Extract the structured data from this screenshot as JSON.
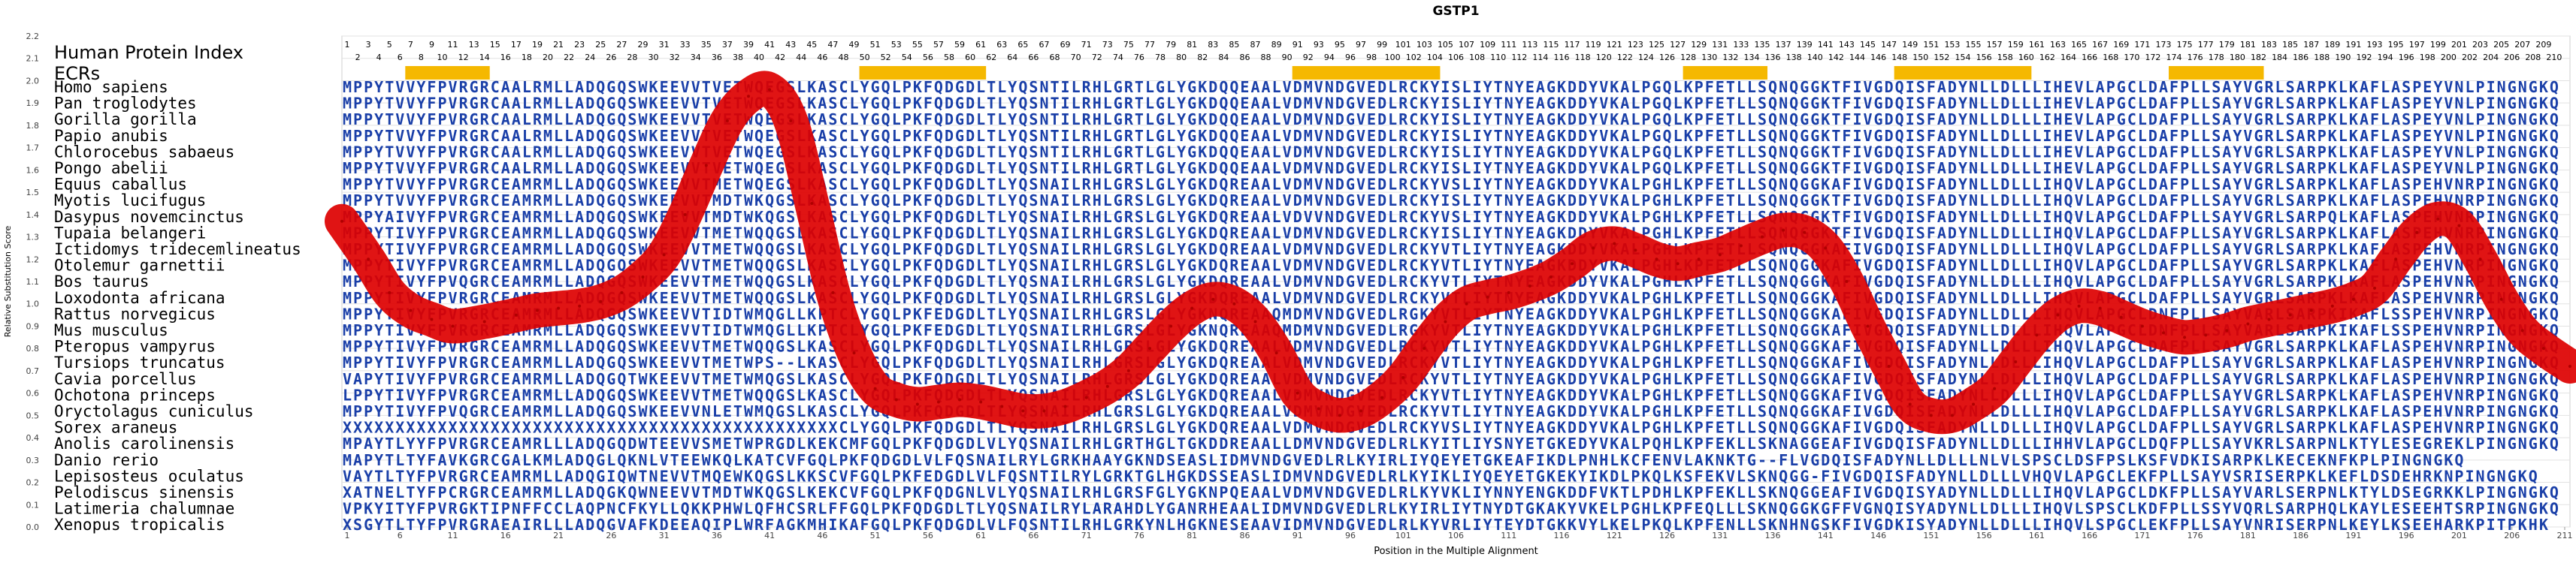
{
  "chart_data": {
    "type": "line",
    "title": "GSTP1",
    "xlabel": "Position in the Multiple Alignment",
    "ylabel": "Relative Substitution Score",
    "ylim": [
      0.0,
      2.2
    ],
    "xlim": [
      1,
      211
    ],
    "x_ticks": [
      1,
      6,
      11,
      16,
      21,
      26,
      31,
      36,
      41,
      46,
      51,
      56,
      61,
      66,
      71,
      76,
      81,
      86,
      91,
      96,
      101,
      106,
      111,
      116,
      121,
      126,
      131,
      136,
      141,
      146,
      151,
      156,
      161,
      166,
      171,
      176,
      181,
      186,
      191,
      196,
      201,
      206,
      211
    ],
    "y_ticks": [
      0.0,
      0.1,
      0.2,
      0.3,
      0.4,
      0.5,
      0.6,
      0.7,
      0.8,
      0.9,
      1.0,
      1.1,
      1.2,
      1.3,
      1.4,
      1.5,
      1.6,
      1.7,
      1.8,
      1.9,
      2.0,
      2.1,
      2.2
    ],
    "grid": true,
    "protein_index_label": "Human Protein Index",
    "protein_index_odd": [
      1,
      3,
      5,
      7,
      9,
      11,
      13,
      15,
      17,
      19,
      21,
      23,
      25,
      27,
      29,
      31,
      33,
      35,
      37,
      39,
      41,
      43,
      45,
      47,
      49,
      51,
      53,
      55,
      57,
      59,
      61,
      63,
      65,
      67,
      69,
      71,
      73,
      75,
      77,
      79,
      81,
      83,
      85,
      87,
      89,
      91,
      93,
      95,
      97,
      99,
      101,
      103,
      105,
      107,
      109,
      111,
      113,
      115,
      117,
      119,
      121,
      123,
      125,
      127,
      129,
      131,
      133,
      135,
      137,
      139,
      141,
      143,
      145,
      147,
      149,
      151,
      153,
      155,
      157,
      159,
      161,
      163,
      165,
      167,
      169,
      171,
      173,
      175,
      177,
      179,
      181,
      183,
      185,
      187,
      189,
      191,
      193,
      195,
      197,
      199,
      201,
      203,
      205,
      207,
      209
    ],
    "protein_index_even": [
      2,
      4,
      6,
      8,
      10,
      12,
      14,
      16,
      18,
      20,
      22,
      24,
      26,
      28,
      30,
      32,
      34,
      36,
      38,
      40,
      42,
      44,
      46,
      48,
      50,
      52,
      54,
      56,
      58,
      60,
      62,
      64,
      66,
      68,
      70,
      72,
      74,
      76,
      78,
      80,
      82,
      84,
      86,
      88,
      90,
      92,
      94,
      96,
      98,
      100,
      102,
      104,
      106,
      108,
      110,
      112,
      114,
      116,
      118,
      120,
      122,
      124,
      126,
      128,
      130,
      132,
      134,
      136,
      138,
      140,
      142,
      144,
      146,
      148,
      150,
      152,
      154,
      156,
      158,
      160,
      162,
      164,
      166,
      168,
      170,
      172,
      174,
      176,
      178,
      180,
      182,
      184,
      186,
      188,
      190,
      192,
      194,
      196,
      198,
      200,
      202,
      204,
      206,
      208,
      210
    ],
    "ecr_label": "ECRs",
    "ecr_regions": [
      [
        7,
        14
      ],
      [
        50,
        61
      ],
      [
        91,
        104
      ],
      [
        128,
        135
      ],
      [
        148,
        160
      ],
      [
        174,
        182
      ]
    ],
    "ecr_color": "#f5b800",
    "line_color": "#dd0000",
    "sequence_color": "#1a3fa8",
    "series": [
      {
        "values": [
          [
            0.5,
            1.37
          ],
          [
            3,
            1.2
          ],
          [
            5,
            1.05
          ],
          [
            7,
            0.97
          ],
          [
            9,
            0.93
          ],
          [
            11,
            0.9
          ],
          [
            14,
            0.92
          ],
          [
            17,
            0.95
          ],
          [
            19,
            0.97
          ],
          [
            21,
            0.98
          ],
          [
            23,
            0.99
          ],
          [
            25,
            1.01
          ],
          [
            27,
            1.05
          ],
          [
            29,
            1.12
          ],
          [
            31,
            1.22
          ],
          [
            33,
            1.4
          ],
          [
            35,
            1.62
          ],
          [
            37,
            1.82
          ],
          [
            39,
            1.93
          ],
          [
            41,
            1.96
          ],
          [
            43,
            1.82
          ],
          [
            45,
            1.45
          ],
          [
            47,
            1.05
          ],
          [
            49,
            0.78
          ],
          [
            51,
            0.62
          ],
          [
            53,
            0.57
          ],
          [
            55,
            0.55
          ],
          [
            57,
            0.56
          ],
          [
            59,
            0.57
          ],
          [
            61,
            0.56
          ],
          [
            63,
            0.54
          ],
          [
            65,
            0.52
          ],
          [
            67,
            0.52
          ],
          [
            69,
            0.54
          ],
          [
            71,
            0.58
          ],
          [
            73,
            0.63
          ],
          [
            75,
            0.7
          ],
          [
            77,
            0.8
          ],
          [
            79,
            0.9
          ],
          [
            81,
            0.98
          ],
          [
            83,
            1.02
          ],
          [
            85,
            1.0
          ],
          [
            87,
            0.92
          ],
          [
            89,
            0.78
          ],
          [
            91,
            0.6
          ],
          [
            93,
            0.53
          ],
          [
            95,
            0.5
          ],
          [
            97,
            0.52
          ],
          [
            99,
            0.58
          ],
          [
            101,
            0.67
          ],
          [
            103,
            0.8
          ],
          [
            105,
            0.92
          ],
          [
            107,
            1.0
          ],
          [
            109,
            1.03
          ],
          [
            111,
            1.05
          ],
          [
            113,
            1.08
          ],
          [
            115,
            1.12
          ],
          [
            117,
            1.18
          ],
          [
            119,
            1.25
          ],
          [
            121,
            1.27
          ],
          [
            123,
            1.24
          ],
          [
            125,
            1.2
          ],
          [
            127,
            1.18
          ],
          [
            129,
            1.2
          ],
          [
            131,
            1.22
          ],
          [
            133,
            1.26
          ],
          [
            135,
            1.3
          ],
          [
            137,
            1.33
          ],
          [
            139,
            1.32
          ],
          [
            141,
            1.25
          ],
          [
            143,
            1.1
          ],
          [
            145,
            0.9
          ],
          [
            147,
            0.72
          ],
          [
            149,
            0.55
          ],
          [
            151,
            0.5
          ],
          [
            153,
            0.5
          ],
          [
            155,
            0.55
          ],
          [
            157,
            0.62
          ],
          [
            159,
            0.74
          ],
          [
            161,
            0.86
          ],
          [
            163,
            0.95
          ],
          [
            165,
            0.99
          ],
          [
            167,
            0.98
          ],
          [
            169,
            0.94
          ],
          [
            171,
            0.9
          ],
          [
            173,
            0.87
          ],
          [
            175,
            0.85
          ],
          [
            177,
            0.86
          ],
          [
            179,
            0.88
          ],
          [
            181,
            0.91
          ],
          [
            183,
            0.93
          ],
          [
            185,
            0.95
          ],
          [
            187,
            0.97
          ],
          [
            189,
            0.99
          ],
          [
            191,
            1.02
          ],
          [
            193,
            1.07
          ],
          [
            195,
            1.2
          ],
          [
            197,
            1.32
          ],
          [
            199,
            1.38
          ],
          [
            201,
            1.35
          ],
          [
            203,
            1.2
          ],
          [
            205,
            1.02
          ],
          [
            207,
            0.88
          ],
          [
            209,
            0.8
          ],
          [
            211.5,
            0.72
          ]
        ]
      }
    ],
    "species": [
      {
        "name": "Homo sapiens",
        "seq": "MPPYTVVYFPVRGRCAALRMLLADQGQSWKEEVVTVETWQEGSLKASCLYGQLPKFQDGDLTLYQSNTILRHLGRTLGLYGKDQQEAALVDMVNDGVEDLRCKYISLIYTNYEAGKDDYVKALPGQLKPFETLLSQNQGGKTFIVGDQISFADYNLLDLLLIHEVLAPGCLDAFPLLSAYVGRLSARPKLKAFLASPEYVNLPINGNGKQ"
      },
      {
        "name": "Pan troglodytes",
        "seq": "MPPYTVVYFPVRGRCAALRMLLADQGQSWKEEVVTVETWQEGSLKASCLYGQLPKFQDGDLTLYQSNTILRHLGRTLGLYGKDQQEAALVDMVNDGVEDLRCKYISLIYTNYEAGKDDYVKALPGQLKPFETLLSQNQGGKTFIVGDQISFADYNLLDLLLIHEVLAPGCLDAFPLLSAYVGRLSARPKLKAFLASPEYVNLPINGNGKQ"
      },
      {
        "name": "Gorilla gorilla",
        "seq": "MPPYTVVYFPVRGRCAALRMLLADQGQSWKEEVVTVETWQEGSLKASCLYGQLPKFQDGDLTLYQSNTILRHLGRTLGLYGKDQQEAALVDMVNDGVEDLRCKYISLIYTNYEAGKDDYVKALPGQLKPFETLLSQNQGGKTFIVGDQISFADYNLLDLLLIHEVLAPGCLDAFPLLSAYVGRLSARPKLKAFLASPEYVNLPINGNGKQ"
      },
      {
        "name": "Papio anubis",
        "seq": "MPPYTVVYFPVRGRCAALRMLLADQGQSWKEEVVTVETWQEGSLKASCLYGQLPKFQDGDLTLYQSNTILRHLGRTLGLYGKDQQEAALVDMVNDGVEDLRCKYISLIYTNYEAGKDDYVKALPGQLKPFETLLSQNQGGKTFIVGDQISFADYNLLDLLLIHEVLAPGCLDAFPLLSAYVGRLSARPKLKAFLASPEYVNLPINGNGKQ"
      },
      {
        "name": "Chlorocebus sabaeus",
        "seq": "MPPYTVVYFPVRGRCAALRMLLADQGQSWKEEVVTVETWQEGSLKASCLYGQLPKFQDGDLTLYQSNTILRHLGRTLGLYGKDQQEAALVDMVNDGVEDLRCKYISLIYTNYEAGKDDYVKALPGQLKPFETLLSQNQGGKTFIVGDQISFADYNLLDLLLIHEVLAPGCLDAFPLLSAYVGRLSARPKLKAFLASPEYVNLPINGNGKQ"
      },
      {
        "name": "Pongo abelii",
        "seq": "MPPYTVVYFPVRGRCAALRMLLADQGQSWKEEVVTVETWQEGSLKASCLYGQLPKFQDGDLTLYQSNTILRHLGRTLGLYGKDQQEAALVDMVNDGVEDLRCKYISLIYTNYEAGKDDYVKALPGQLKPFETLLSQNQGGKTFIVGDQISFADYNLLDLLLIHEVLAPGCLDAFPLLSAYVGRLSARPKLKAFLASPEYVNLPINGNGKQ"
      },
      {
        "name": "Equus caballus",
        "seq": "MPPYTVVYFPVRGRCEAMRMLLADQGQSWKEEVVTMETWQEGSLKASCLYGQLPKFQDGDLTLYQSNAILRHLGRSLGLYGKDQREAALVDMVNDGVEDLRCKYVSLIYTNYEAGKDDYVKALPGHLKPFETLLSQNQGGKAFIVGDQISFADYNLLDLLLIHQVLAPGCLDAFPLLSAYVGRLSARPKLKAFLASPEHVNRPINGNGKQ"
      },
      {
        "name": "Myotis lucifugus",
        "seq": "MPPYTVVYFPVRGRCEAMRMLLADQGQSWKEEVVTMDTWKQGSLKASCLYGQLPKFQDGDLTLYQSNAILRHLGRSLGLYGKDQREAALVDMVNDGVEDLRCKYISLIYTNYEAGKDDYVKALPGHLKPFETLLSQNQGGKTFIVGDQISFADYNLLDLLLIHQVLAPGCLDAFPLLSAYVGRLSARPKLKAFLASPEHVNRPINGNGKQ"
      },
      {
        "name": "Dasypus novemcinctus",
        "seq": "MPPYAIVYFPVRGRCEAMRMLLADQGQSWKEEVVTMDTWKQGSLKASCLYGQLPKFQDGDLTLYQSNAILRHLGRSLGLYGKDQREAALVDVVNDGVEDLRCKYVSLIYTNYEAGKDDYVKALPGHLKPFETLLSQNQGGKTFIVGDQISFADYNLLDLLLIHQVLAPGCLDAFPLLSAYVGRLSARPQLKAFLASPEHVNRPINGNGKQ"
      },
      {
        "name": "Tupaia belangeri",
        "seq": "MPPYTIVYFPVRGRCEAMRMLLADQGQSWKEEVVTMETWQQGSLKASCLYGQLPKFQDGDLTLYQSNAILRHLGRSLGLYGKDQREAALVDMVNDGVEDLRCKYISLIYTNYEAGKDDYVKALPGHLKPFETLLSQNQGGKTFIVGDQISFADYNLLDLLLIHQVLAPGCLDAFPLLSAYVGRLSARPKLKAFLASPEHVNRPINGNGKQ"
      },
      {
        "name": "Ictidomys tridecemlineatus",
        "seq": "MPPYTIVYFPVRGRCEAMRMLLADQGQSWKEEVVTMETWQQGSLKASCLYGQLPKFQDGDLTLYQSNAILRHLGRSLGLYGKDQREAALVDMVNDGVEDLRCKYVTLIYTNYEAGKDDYVKALPGHLKPFETLLSQNQGGKAFIVGDQISFADYNLLDLLLIHQVLAPGCLDAFPLLSAYVGRLSARPKLKAFLASPEHVNRPINGNGKQ"
      },
      {
        "name": "Otolemur garnettii",
        "seq": "MPPYTIVYFPVRGRCEAMRMLLADQGQSWKEEVVTMETWQQGSLKASCLYGQLPKFQDGDLTLYQSNAILRHLGRSLGLYGKDQREAALVDMVNDGVEDLRCKYVTLIYTNYEAGKDDYVKALPGHLKPFETLLSQNQGGKAFIVGDQISFADYNLLDLLLIHQVLAPGCLDAFPLLSAYVGRLSARPKLKAFLASPEHVNRPINGNGKQ"
      },
      {
        "name": "Bos taurus",
        "seq": "MPPYTIVYFPVQGRCEAMRMLLADQGQSWKEEVVTMETWQQGSLKASCLYGQLPKFQDGDLTLYQSNAILRHLGRSLGLYGKDQREAALVDMVNDGVEDLRCKYVTLIYTNYEAGKDDYVKALPGHLKPFETLLSQNQGGKAFIVGDQISFADYNLLDLLLIHQVLAPGCLDAFPLLSAYVGRLSARPKLKAFLASPEHVNRPINGNGKQ"
      },
      {
        "name": "Loxodonta africana",
        "seq": "MPPYTIVYFPVRGRCEAMRMLLADQGQSWKEEVVTMETWQQGSLKASCLYGQLPKFQDGDLTLYQSNAILRHLGRSLGLYGKDQREAALVDMVNDGVEDLRCKYVTLIYTNYEAGKDDYVKALPGHLKPFETLLSQNQGGKAFIVGDQISFADYNLLDLLLIHQVLAPGCLDAFPLLSAYVGRLSARPKLKAFLASPEHVNRPINGNGKQ"
      },
      {
        "name": "Rattus norvegicus",
        "seq": "MPPYTIVYFPVRGRCEAMRMLLADQGQSWKEEVVTIDTWMQGLLKPTCLYGQLPKFEDGDLTLYQSNAILRHLGRSLGLYGKNQREAAQMDMVNDGVEDLRGKYVTLIYTNYEAGKDDYVKALPGHLKPFETLLSQNQGGKAFIVGDQISFADYNLLDLLLIHQVLAPGCLDNFPLLSAYVARLSARPKIKAFLSSPEHVNRPINGNGKQ"
      },
      {
        "name": "Mus musculus",
        "seq": "MPPYTIVYFPVRGRCEAMRMLLADQGQSWKEEVVTIDTWMQGLLKPTCLYGQLPKFEDGDLTLYQSNAILRHLGRSLGLYGKNQREAAQMDMVNDGVEDLRGKYVTLIYTNYEAGKDDYVKALPGHLKPFETLLSQNQGGKAFIVGDQISFADYNLLDLLLIHQVLAPGCLDNFPLLSAYVARLSARPKIKAFLSSPEHVNRPINGNGKQ"
      },
      {
        "name": "Pteropus vampyrus",
        "seq": "MPPYTIVYFPVRGRCEAMRMLLADQGQSWKEEVVTMETWQQGSLKASCLYGQLPKFQDGDLTLYQSNAILRHLGRSLGLYGKDQREAALVDMVNDGVEDLRCKYVTLIYTNYEAGKDDYVKALPGHLKPFETLLSQNQGGKAFIVGDQISFADYNLLDLLLIHQVLAPGCLDAFPLLSAYVGRLSARPKLKAFLASPEHVNRPINGNGKQ"
      },
      {
        "name": "Tursiops truncatus",
        "seq": "MPPYTIVYFPVRGRCEAMRMLLADQGQSWKEEVVTMETWPS--LKASCLYGQLPKFQDGDLTLYQSNAILRHLGRSLGLYGKDQREAALVDMVNDGVEDLRCKYVTLIYTNYEAGKDDYVKALPGHLKPFETLLSQNQGGKAFIVGDQISFADYNLLDLLLIHQVLAPGCLDAFPLLSAYVGRLSARPKLKAFLASPEHVNRPINGNGKQ"
      },
      {
        "name": "Cavia porcellus",
        "seq": "VAPYTIVYFPVRGRCEAMRMLLADQGQTWKEEVVTMETWMQGSLKASCLYGQLPKFQDGDLTLYQSNAILRHLGRSLGLYGKDQREAALVDMVNDGVEDLRCKYVTLIYTNYEAGKDDYVKALPGHLKPFETLLSQNQGGKAFIVGDQISFADYNLLDLLLIHQVLAPGCLDAFPLLSAYVGRLSARPKLKAFLASPEHVNRPINGNGKQ"
      },
      {
        "name": "Ochotona princeps",
        "seq": "LPPYTIVYFPVRGRCEAMRMLLADQGQSWKEEVVTMETWQQGSLKASCLYGQLPKFQDGDLTLYQSNAILRHLGRSLGLYGKDQREAALVDMVNDGVEDLRCKYVTLIYTNYEAGKDDYVKALPGHLKPFETLLSQNQGGKAFIVGDQISFADYNLLDLLLIHQVLAPGCLDAFPLLSAYVGRLSARPKLKAFLASPEHVNRPINGNGKQ"
      },
      {
        "name": "Oryctolagus cuniculus",
        "seq": "MPPYTIVYFPVQGRCEAMRMLLADQGQSWKEEVVNLETWMQGSLKASCLYGQLPKFQDGDLTLYQSNAILRHLGRSLGLYGKDQREAALVDMVNDGVEDLRCKYVTLIYTNYEAGKDDYVKALPGHLKPFETLLSQNQGGKAFIVGDQISFADYNLLDLLLIHQVLAPGCLDAFPLLSAYVGRLSARPKLKAFLASPEHVNRPINGNGKQ"
      },
      {
        "name": "Sorex araneus",
        "seq": "XXXXXXXXXXXXXXXXXXXXXXXXXXXXXXXXXXXXXXXXXXXXXXXCLYGQLPKFQDGDLTLYQSNAILRHLGRSLGLYGKDQREAALVDMVNDGVEDLRCKYVSLIYTNYEAGKDDYVKALPGHLKPFETLLSQNQGGKAFIVGDQISFADYNLLDLLLIHQVLAPGCLDAFPLLSAYVGRLSARPKLKAFLASPEHVNRPINGNGKQ"
      },
      {
        "name": "Anolis carolinensis",
        "seq": "MPAYTLYYFPVRGRCEAMRLLLADQGQDWTEEVVSMETWPRGDLKEKCMFGQLPKFQDGDLVLYQSNAILRHLGRTHGLTGKDDREAALLDMVNDGVEDLRLKYITLIYSNYETGKEDYVKALPQHLKPFEKLLSKNAGGEAFIVGDQISFADYNLLDLLLIHHVLAPGCLDQFPLLSAYVKRLSARPNLKTYLESEGREKLPINGNGKQ"
      },
      {
        "name": "Danio rerio",
        "seq": "MAPYTLTYFAVKGRCGALKMLADQGLQKNLVTEEWKQLKATCVFGQLPKFQDGDLVLFQSNAILRYLGRKHAAYGKNDSEASLIDMVNDGVEDLRLKYIRLIYQEYETGKEAFIKDLPNHLKCFENVLAKNKTG--FLVGDQISFADYNLLDLLLNLVLSPSCLDSFPSLKSFVDKISARPKLKECEKNFKPLPINGNGKQ"
      },
      {
        "name": "Lepisosteus oculatus",
        "seq": "VAYTLTYFPVRGRCEAMRMLLADQGIQWTNEVVTMQEWKQGSLKKSCVFGQLPKFEDGDLVLFQSNTILRYLGRKTGLHGKDSSEASLIDMVNDGVEDLRLKYIKLIYQEYETGKEKYIKDLPKQLKSFEKVLSKNQGG-FIVGDQISFADYNLLDLLLVHQVLAPGCLEKFPLLSAYVSRISERPKLKEFLDSDEHRKNPINGNGKQ"
      },
      {
        "name": "Pelodiscus sinensis",
        "seq": "XATNELTYFPCRGRCEAMRMLLADQGKQWNEEVVTMDTWKQGSLKEKCVFGQLPKFQDGNLVLYQSNAILRHLGRSFGLYGKNPQEAALVDMVNDGVEDLRLKYVKLIYNNYENGKDDFVKTLPDHLKPFEKLLSKNQGGEAFIVGDQISYADYNLLDLLLIHQVLAPGCLDKFPLLSAYVARLSERPNLKTYLDSEGRKKLPINGNGKQ"
      },
      {
        "name": "Latimeria chalumnae",
        "seq": "VPKYITYFPVRGKTIPNFFCCLAQPNCFKYLLQKKPHWLQFHCSRLFFGQLPKFQDGDLTLYQSNAILRYLARAHDLYGANRHEAALIDMVNDGVEDLRLKYIRLIYTNYDTGKAKYVKELPGHLKPFEQLLLSKNQGGKGFFVGNQISYADYNLLDLLLIHQVLSPSCLKDFPLLSSYVQRLSARPHQLKAYLESEEHTSRPINGNGKQ"
      },
      {
        "name": "Xenopus tropicalis",
        "seq": "XSGYTLTYFPVRGRAEAIRLLLADQGVAFKDEEAQIPLWRFAGKMHIKAFGQLPKFQDGDLVLFQSNTILRHLGRKYNLHGKNESEAAVIDMVNDGVEDLRLKYVRLIYTEYDTGKKVYLKELPKQLKPFENLLSKNHNGSKFIVGDKISYADYNLLDLLLIHQVLSPGCLEKFPLLSAYVNRISERPNLKEYLKSEEHARKPITPKHK"
      }
    ]
  }
}
